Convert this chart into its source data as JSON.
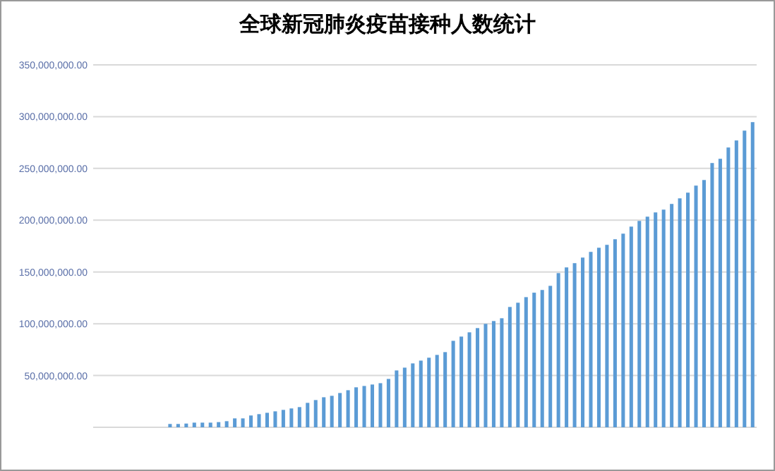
{
  "chart_data": {
    "type": "bar",
    "title": "全球新冠肺炎疫苗接种人数统计",
    "categories": [
      null,
      null,
      null,
      null,
      null,
      null,
      null,
      null,
      null,
      null,
      null,
      null,
      null,
      null,
      null,
      null,
      null,
      null,
      null,
      null,
      null,
      null,
      null,
      null,
      null,
      null,
      null,
      null,
      null,
      null,
      null,
      null,
      null,
      null,
      null,
      null,
      null,
      null,
      null,
      null,
      null,
      null,
      null,
      null,
      null,
      null,
      null,
      null,
      null,
      null,
      null,
      null,
      null,
      null,
      null,
      null,
      null,
      null,
      null,
      null,
      null,
      null,
      null,
      null,
      null,
      null,
      null,
      null,
      null,
      null,
      null,
      null,
      null,
      null,
      null,
      null,
      null,
      null,
      null,
      null,
      null,
      null
    ],
    "values": [
      null,
      null,
      null,
      null,
      null,
      null,
      null,
      null,
      null,
      3200000,
      3200000,
      3600000,
      4500000,
      4500000,
      4500000,
      5000000,
      5900000,
      8600000,
      8600000,
      11400000,
      12700000,
      14000000,
      15400000,
      16800000,
      18200000,
      19500000,
      23600000,
      26300000,
      29000000,
      30400000,
      33100000,
      35800000,
      38600000,
      39900000,
      41300000,
      42600000,
      46700000,
      54900000,
      57600000,
      61700000,
      64400000,
      67200000,
      69900000,
      72600000,
      83500000,
      87600000,
      91700000,
      95800000,
      99900000,
      102600000,
      105300000,
      116200000,
      120300000,
      125700000,
      130000000,
      132600000,
      136600000,
      148900000,
      154400000,
      158500000,
      163900000,
      169400000,
      173400000,
      176200000,
      181600000,
      187000000,
      193800000,
      199300000,
      203400000,
      207500000,
      210200000,
      215700000,
      221100000,
      226600000,
      233400000,
      238800000,
      255200000,
      259300000,
      270200000,
      277000000,
      286500000,
      294700000
    ],
    "color": "#5b9bd5",
    "ylim": [
      0,
      350000000
    ],
    "yticks": [
      {
        "value": 50000000,
        "label": "50,000,000.00"
      },
      {
        "value": 100000000,
        "label": "100,000,000.00"
      },
      {
        "value": 150000000,
        "label": "150,000,000.00"
      },
      {
        "value": 200000000,
        "label": "200,000,000.00"
      },
      {
        "value": 250000000,
        "label": "250,000,000.00"
      },
      {
        "value": 300000000,
        "label": "300,000,000.00"
      },
      {
        "value": 350000000,
        "label": "350,000,000.00"
      }
    ],
    "grid": "y"
  }
}
